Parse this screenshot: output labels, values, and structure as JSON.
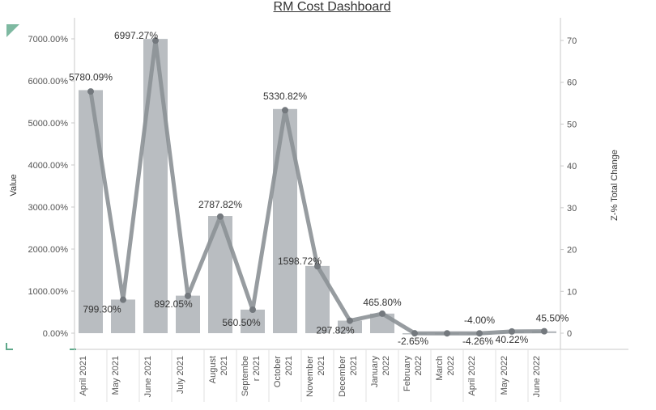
{
  "dashboard": {
    "title": "RM Cost Dashboard"
  },
  "colors": {
    "bar": "#b9bdc1",
    "line": "#8c9196",
    "line_point": "#74797e",
    "axis": "#c8c8c8",
    "text": "#555555",
    "label": "#333333",
    "corner": "#5ea88a"
  },
  "chart_data": {
    "type": "bar",
    "title": "RM Cost Dashboard",
    "categories": [
      "April 2021",
      "May 2021",
      "June 2021",
      "July 2021",
      "August 2021",
      "September 2021",
      "October 2021",
      "November 2021",
      "December 2021",
      "January 2022",
      "February 2022",
      "March 2022",
      "April 2022",
      "May 2022",
      "June 2022"
    ],
    "category_tick_labels": [
      [
        "April 2021"
      ],
      [
        "May 2021"
      ],
      [
        "June 2021"
      ],
      [
        "July 2021"
      ],
      [
        "August",
        "2021"
      ],
      [
        "Septembe",
        "r 2021"
      ],
      [
        "October",
        "2021"
      ],
      [
        "November",
        "2021"
      ],
      [
        "December",
        "2021"
      ],
      [
        "January",
        "2022"
      ],
      [
        "February",
        "2022"
      ],
      [
        "March",
        "2022"
      ],
      [
        "April 2022"
      ],
      [
        "May 2022"
      ],
      [
        "June 2022"
      ]
    ],
    "bar_series": {
      "values": [
        5780.09,
        799.3,
        6997.27,
        892.05,
        2787.82,
        560.5,
        5330.82,
        1598.72,
        297.82,
        465.8,
        -2.65,
        -4.26,
        -4.0,
        40.22,
        45.5
      ]
    },
    "data_labels": [
      "5780.09%",
      "799.30%",
      "6997.27%",
      "892.05%",
      "2787.82%",
      "560.50%",
      "5330.82%",
      "1598.72%",
      "297.82%",
      "465.80%",
      "-2.65%",
      "-4.26%",
      "-4.00%",
      "40.22%",
      "45.50%"
    ],
    "line_series": {
      "values": [
        57.8,
        7.99,
        69.97,
        8.92,
        27.88,
        5.61,
        53.31,
        15.99,
        2.98,
        4.66,
        -0.03,
        -0.04,
        -0.04,
        0.4,
        0.46
      ]
    },
    "ylabel": "Value",
    "y2label": "Z-% Total Change",
    "ylim": [
      -400,
      7300
    ],
    "y2lim": [
      -4,
      73
    ],
    "y_ticks": [
      "0.00%",
      "1000.00%",
      "2000.00%",
      "3000.00%",
      "4000.00%",
      "5000.00%",
      "6000.00%",
      "7000.00%"
    ],
    "y2_ticks": [
      "0",
      "10",
      "20",
      "30",
      "40",
      "50",
      "60",
      "70"
    ]
  }
}
